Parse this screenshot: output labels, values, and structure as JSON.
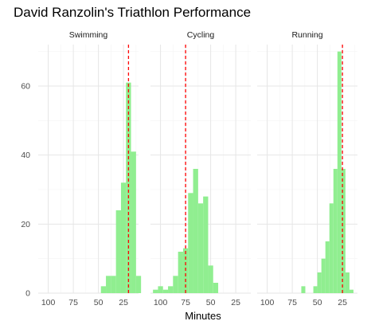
{
  "chart_data": {
    "type": "histogram",
    "title": "David Ranzolin's Triathlon Performance",
    "xlabel": "Minutes",
    "ylabel": "",
    "x_reversed": true,
    "xlim": [
      110,
      10
    ],
    "ylim": [
      0,
      72
    ],
    "x_ticks": [
      100,
      75,
      50,
      25
    ],
    "y_ticks": [
      0,
      20,
      40,
      60
    ],
    "grid": true,
    "fill_color": "#90EE90",
    "line_color": "#FF0000",
    "panels": [
      {
        "label": "Swimming",
        "reference_line": 20,
        "bin_width": 5,
        "bins": [
          {
            "x": 45,
            "count": 2
          },
          {
            "x": 40,
            "count": 5
          },
          {
            "x": 35,
            "count": 5
          },
          {
            "x": 30,
            "count": 24
          },
          {
            "x": 25,
            "count": 32
          },
          {
            "x": 20,
            "count": 61
          },
          {
            "x": 15,
            "count": 41
          },
          {
            "x": 10,
            "count": 5
          }
        ]
      },
      {
        "label": "Cycling",
        "reference_line": 75,
        "bin_width": 5,
        "bins": [
          {
            "x": 105,
            "count": 1
          },
          {
            "x": 100,
            "count": 2
          },
          {
            "x": 95,
            "count": 1
          },
          {
            "x": 90,
            "count": 2
          },
          {
            "x": 85,
            "count": 5
          },
          {
            "x": 80,
            "count": 12
          },
          {
            "x": 75,
            "count": 13
          },
          {
            "x": 70,
            "count": 29
          },
          {
            "x": 65,
            "count": 36
          },
          {
            "x": 60,
            "count": 26
          },
          {
            "x": 55,
            "count": 28
          },
          {
            "x": 50,
            "count": 8
          },
          {
            "x": 45,
            "count": 3
          }
        ]
      },
      {
        "label": "Running",
        "reference_line": 25,
        "bin_width": 4,
        "bins": [
          {
            "x": 64,
            "count": 2
          },
          {
            "x": 52,
            "count": 2
          },
          {
            "x": 48,
            "count": 6
          },
          {
            "x": 44,
            "count": 10
          },
          {
            "x": 40,
            "count": 15
          },
          {
            "x": 36,
            "count": 26
          },
          {
            "x": 32,
            "count": 36
          },
          {
            "x": 28,
            "count": 70
          },
          {
            "x": 24,
            "count": 36
          },
          {
            "x": 20,
            "count": 6
          },
          {
            "x": 16,
            "count": 1
          }
        ]
      }
    ]
  }
}
